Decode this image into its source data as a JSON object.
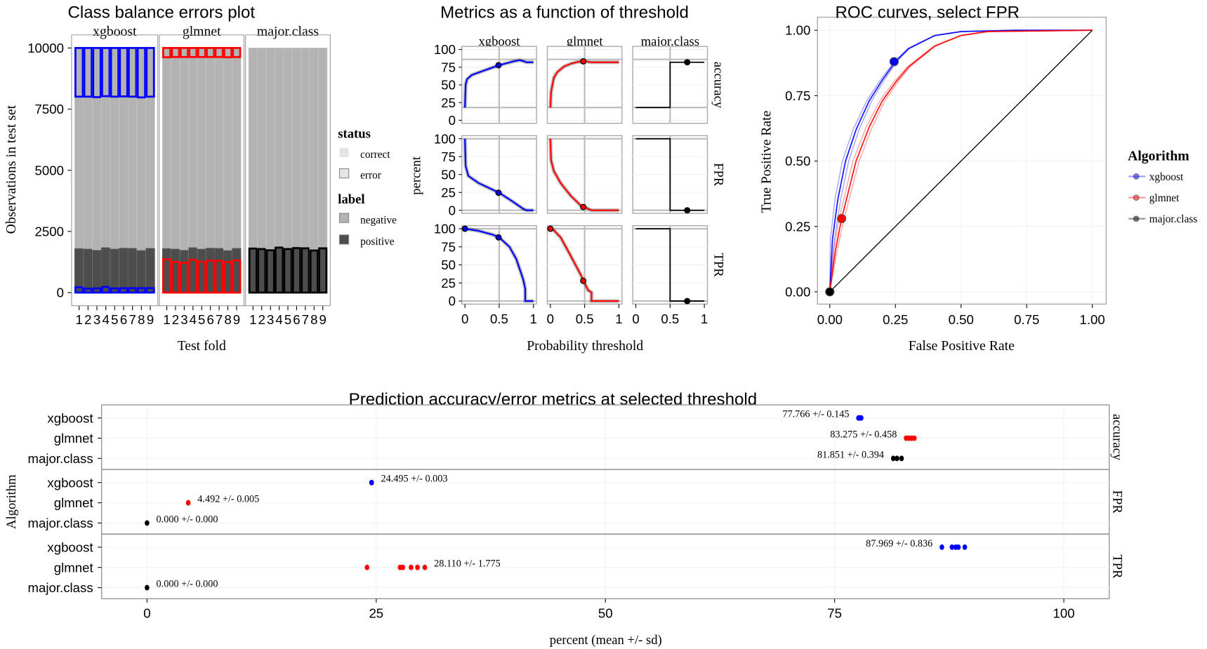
{
  "colors": {
    "xgboost": "#0000ff",
    "glmnet": "#ff0000",
    "major.class": "#000000",
    "negative": "#b3b3b3",
    "positive": "#4d4d4d",
    "ref_line": "#bdbdbd"
  },
  "chart_data": [
    {
      "type": "bar",
      "title": "Class balance errors plot",
      "xlabel": "Test fold",
      "ylabel": "Observations in test set",
      "ylim": [
        0,
        10000
      ],
      "yticks": [
        "0",
        "2500",
        "5000",
        "7500",
        "10000"
      ],
      "facets": [
        "xgboost",
        "glmnet",
        "major.class"
      ],
      "folds": [
        "1",
        "2",
        "3",
        "4",
        "5",
        "6",
        "7",
        "8",
        "9"
      ],
      "total_per_fold": 10000,
      "positive": [
        1800,
        1780,
        1730,
        1840,
        1780,
        1820,
        1810,
        1720,
        1810
      ],
      "errors": {
        "xgboost": {
          "negative": [
            1990,
            1990,
            2010,
            1970,
            1990,
            1980,
            1990,
            2020,
            1990
          ],
          "positive": [
            220,
            160,
            170,
            230,
            170,
            180,
            180,
            180,
            180
          ]
        },
        "glmnet": {
          "negative": [
            380,
            370,
            370,
            370,
            370,
            370,
            370,
            380,
            370
          ],
          "positive": [
            1370,
            1260,
            1220,
            1340,
            1260,
            1300,
            1300,
            1250,
            1310
          ]
        },
        "major.class": {
          "negative": [
            0,
            0,
            0,
            0,
            0,
            0,
            0,
            0,
            0
          ],
          "positive": [
            1800,
            1780,
            1730,
            1840,
            1780,
            1820,
            1810,
            1720,
            1810
          ]
        }
      },
      "legend": {
        "position": "right",
        "status_title": "status",
        "status": [
          "correct",
          "error"
        ],
        "label_title": "label",
        "label": [
          "negative",
          "positive"
        ]
      }
    },
    {
      "type": "line",
      "title": "Metrics as a function of threshold",
      "xlabel": "Probability threshold",
      "ylabel": "percent",
      "xlim": [
        0,
        1
      ],
      "ylim": [
        0,
        100
      ],
      "xticks": [
        "0",
        "0.5",
        "1"
      ],
      "yticks": [
        "0",
        "25",
        "50",
        "75",
        "100"
      ],
      "columns": [
        "xgboost",
        "glmnet",
        "major.class"
      ],
      "rows": [
        "accuracy",
        "FPR",
        "TPR"
      ],
      "hlines": {
        "accuracy": [
          18,
          86
        ],
        "FPR": [
          0,
          100
        ],
        "TPR": [
          0,
          100
        ]
      },
      "vline": 0.5,
      "curves": {
        "xgboost": {
          "accuracy": [
            [
              0,
              18
            ],
            [
              0.01,
              50
            ],
            [
              0.03,
              58
            ],
            [
              0.1,
              64
            ],
            [
              0.3,
              71
            ],
            [
              0.5,
              77.8
            ],
            [
              0.7,
              83
            ],
            [
              0.8,
              85
            ],
            [
              0.87,
              83
            ],
            [
              0.9,
              82
            ],
            [
              1,
              82
            ]
          ],
          "FPR": [
            [
              0,
              100
            ],
            [
              0.01,
              62
            ],
            [
              0.05,
              48
            ],
            [
              0.2,
              38
            ],
            [
              0.5,
              24.5
            ],
            [
              0.7,
              12
            ],
            [
              0.85,
              2
            ],
            [
              0.9,
              0
            ],
            [
              1,
              0
            ]
          ],
          "TPR": [
            [
              0,
              100
            ],
            [
              0.2,
              97
            ],
            [
              0.4,
              92
            ],
            [
              0.5,
              88
            ],
            [
              0.65,
              75
            ],
            [
              0.75,
              58
            ],
            [
              0.85,
              30
            ],
            [
              0.88,
              17
            ],
            [
              0.88,
              0
            ],
            [
              1,
              0
            ]
          ]
        },
        "glmnet": {
          "accuracy": [
            [
              0,
              18
            ],
            [
              0.01,
              40
            ],
            [
              0.05,
              60
            ],
            [
              0.1,
              68
            ],
            [
              0.2,
              76
            ],
            [
              0.3,
              80
            ],
            [
              0.4,
              82.5
            ],
            [
              0.5,
              83.3
            ],
            [
              0.6,
              82
            ],
            [
              1,
              82
            ]
          ],
          "FPR": [
            [
              0,
              100
            ],
            [
              0.01,
              70
            ],
            [
              0.05,
              55
            ],
            [
              0.15,
              38
            ],
            [
              0.3,
              20
            ],
            [
              0.45,
              6
            ],
            [
              0.5,
              4.5
            ],
            [
              0.6,
              0
            ],
            [
              1,
              0
            ]
          ],
          "TPR": [
            [
              0,
              100
            ],
            [
              0.05,
              98
            ],
            [
              0.15,
              88
            ],
            [
              0.3,
              62
            ],
            [
              0.45,
              35
            ],
            [
              0.5,
              25
            ],
            [
              0.55,
              15
            ],
            [
              0.6,
              12
            ],
            [
              0.6,
              0
            ],
            [
              1,
              0
            ]
          ]
        },
        "major.class": {
          "accuracy": [
            [
              0,
              18
            ],
            [
              0.5,
              18
            ],
            [
              0.5,
              82
            ],
            [
              1,
              82
            ]
          ],
          "FPR": [
            [
              0,
              100
            ],
            [
              0.5,
              100
            ],
            [
              0.5,
              0
            ],
            [
              1,
              0
            ]
          ],
          "TPR": [
            [
              0,
              100
            ],
            [
              0.5,
              100
            ],
            [
              0.5,
              0
            ],
            [
              1,
              0
            ]
          ]
        }
      },
      "selected_points": {
        "xgboost": {
          "accuracy": [
            [
              0.49,
              77.8
            ]
          ],
          "FPR": [
            [
              0.49,
              24.5
            ]
          ],
          "TPR": [
            [
              0,
              100
            ],
            [
              0.49,
              88
            ]
          ]
        },
        "glmnet": {
          "accuracy": [
            [
              0.48,
              83.3
            ]
          ],
          "FPR": [
            [
              0.48,
              4.5
            ]
          ],
          "TPR": [
            [
              0,
              100
            ],
            [
              0.48,
              28
            ]
          ]
        },
        "major.class": {
          "accuracy": [
            [
              0.75,
              82
            ]
          ],
          "FPR": [
            [
              0.75,
              0
            ]
          ],
          "TPR": [
            [
              0.75,
              0
            ]
          ]
        }
      }
    },
    {
      "type": "line",
      "title": "ROC curves, select FPR",
      "xlabel": "False Positive Rate",
      "ylabel": "True Positive Rate",
      "xlim": [
        0,
        1
      ],
      "ylim": [
        0,
        1
      ],
      "xticks": [
        "0.00",
        "0.25",
        "0.50",
        "0.75",
        "1.00"
      ],
      "yticks": [
        "0.00",
        "0.25",
        "0.50",
        "0.75",
        "1.00"
      ],
      "legend": {
        "title": "Algorithm",
        "position": "right"
      },
      "series": [
        {
          "name": "xgboost",
          "points": [
            [
              0,
              0
            ],
            [
              0.01,
              0.2
            ],
            [
              0.03,
              0.35
            ],
            [
              0.06,
              0.5
            ],
            [
              0.1,
              0.62
            ],
            [
              0.15,
              0.73
            ],
            [
              0.2,
              0.81
            ],
            [
              0.25,
              0.88
            ],
            [
              0.3,
              0.93
            ],
            [
              0.4,
              0.98
            ],
            [
              0.5,
              0.995
            ],
            [
              0.7,
              1
            ],
            [
              1,
              1
            ]
          ],
          "selected": [
            0.245,
            0.88
          ]
        },
        {
          "name": "glmnet",
          "points": [
            [
              0,
              0
            ],
            [
              0.02,
              0.15
            ],
            [
              0.045,
              0.28
            ],
            [
              0.1,
              0.5
            ],
            [
              0.15,
              0.63
            ],
            [
              0.2,
              0.73
            ],
            [
              0.25,
              0.8
            ],
            [
              0.3,
              0.86
            ],
            [
              0.4,
              0.94
            ],
            [
              0.5,
              0.98
            ],
            [
              0.6,
              0.995
            ],
            [
              1,
              1
            ]
          ],
          "selected": [
            0.045,
            0.28
          ]
        },
        {
          "name": "major.class",
          "points": [
            [
              0,
              0
            ],
            [
              1,
              1
            ]
          ],
          "selected": [
            0,
            0
          ]
        }
      ]
    },
    {
      "type": "scatter",
      "title": "Prediction accuracy/error metrics at selected threshold",
      "xlabel": "percent (mean +/- sd)",
      "ylabel": "Algorithm",
      "xlim": [
        0,
        100
      ],
      "xticks": [
        "0",
        "25",
        "50",
        "75",
        "100"
      ],
      "rows": [
        {
          "metric": "accuracy",
          "items": [
            {
              "algorithm": "xgboost",
              "label": "77.766 +/- 0.145",
              "values": [
                77.6,
                77.7,
                77.8,
                77.9
              ],
              "label_side": "left"
            },
            {
              "algorithm": "glmnet",
              "label": "83.275 +/- 0.458",
              "values": [
                82.8,
                83.1,
                83.4,
                83.7
              ],
              "label_side": "left"
            },
            {
              "algorithm": "major.class",
              "label": "81.851 +/- 0.394",
              "values": [
                81.4,
                81.8,
                82.3
              ],
              "label_side": "left"
            }
          ]
        },
        {
          "metric": "FPR",
          "items": [
            {
              "algorithm": "xgboost",
              "label": "24.495 +/- 0.003",
              "values": [
                24.49,
                24.5
              ],
              "label_side": "right"
            },
            {
              "algorithm": "glmnet",
              "label": "4.492 +/- 0.005",
              "values": [
                4.49,
                4.5
              ],
              "label_side": "right"
            },
            {
              "algorithm": "major.class",
              "label": "0.000 +/- 0.000",
              "values": [
                0
              ],
              "label_side": "right"
            }
          ]
        },
        {
          "metric": "TPR",
          "items": [
            {
              "algorithm": "xgboost",
              "label": "87.969 +/- 0.836",
              "values": [
                86.7,
                87.8,
                88.2,
                88.5,
                89.2
              ],
              "label_side": "left"
            },
            {
              "algorithm": "glmnet",
              "label": "28.110 +/- 1.775",
              "values": [
                24.0,
                27.6,
                27.9,
                28.8,
                29.5,
                30.3
              ],
              "label_side": "right"
            },
            {
              "algorithm": "major.class",
              "label": "0.000 +/- 0.000",
              "values": [
                0
              ],
              "label_side": "right"
            }
          ]
        }
      ]
    }
  ]
}
